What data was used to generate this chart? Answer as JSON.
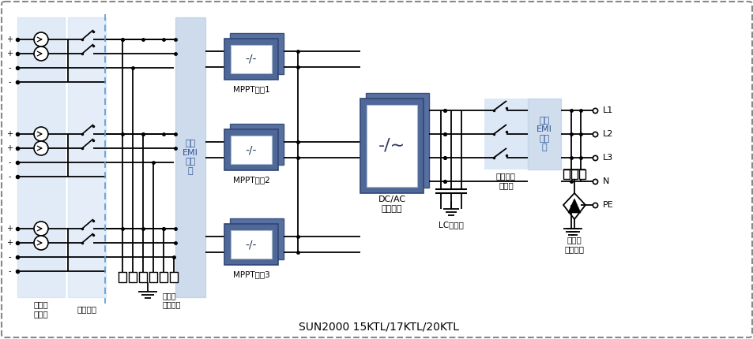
{
  "bg_color": "#ffffff",
  "blue_block_light": "#c5d9f1",
  "blue_block_mid": "#b8cce4",
  "box_face_dark": "#4f6fa0",
  "box_face_mid": "#6080b0",
  "box_face_light": "#7090c0",
  "box_inner": "#ffffff",
  "line_color": "#000000",
  "dash_line_color": "#5b9bd5",
  "text_color": "#000000",
  "blue_text_color": "#2f5496",
  "title_text": "SUN2000 15KTL/17KTL/20KTL",
  "title_fontsize": 10,
  "labels": {
    "input_current": "输入电\n流检测",
    "dc_switch": "直流开关",
    "input_emi": "输入\nEMI\n滤波\n器",
    "mppt1": "MPPT电路1",
    "mppt2": "MPPT电路2",
    "mppt3": "MPPT电路3",
    "dcac": "DC/AC\n逆变电路",
    "lc_filter": "LC滤波器",
    "output_relay": "输出隔离\n继电器",
    "output_emi": "输出\nEMI\n滤波\n器",
    "ac_surge": "交流浪\n涌保护器",
    "dc_surge": "直流浪\n涌保护器",
    "l1": "L1",
    "l2": "L2",
    "l3": "L3",
    "n": "N",
    "pe": "PE"
  }
}
